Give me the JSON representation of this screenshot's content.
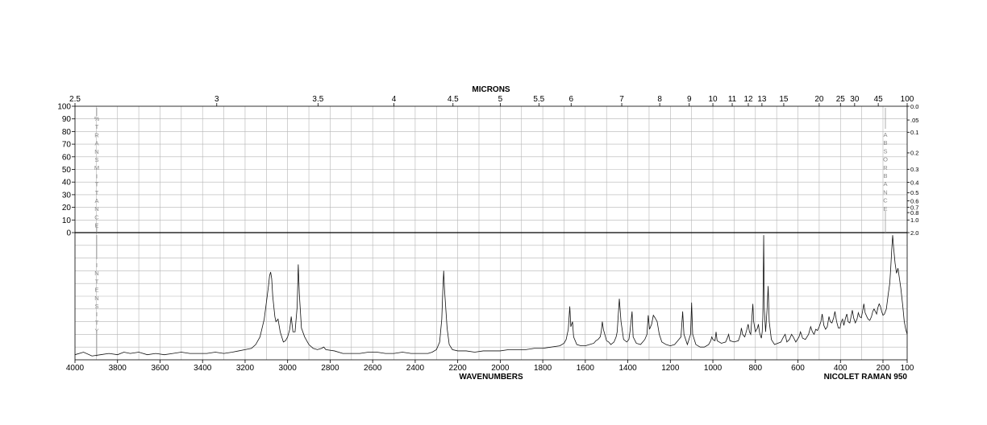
{
  "chart_data": {
    "type": "line",
    "xlabel": "WAVENUMBERS",
    "top_axis_label": "MICRONS",
    "instrument_label": "NICOLET RAMAN 950",
    "left_upper_axis_title": "%TRANSMITTANCE",
    "left_lower_axis_title": "INTENSITY",
    "right_axis_title": "ABSORBANCE",
    "xlim": [
      4000,
      100
    ],
    "x_ticks": [
      4000,
      3800,
      3600,
      3400,
      3200,
      3000,
      2800,
      2600,
      2400,
      2200,
      2000,
      1800,
      1600,
      1400,
      1200,
      1000,
      800,
      600,
      400,
      200,
      100
    ],
    "x_tick_labels": [
      "4000",
      "3800",
      "3600",
      "3400",
      "3200",
      "3000",
      "2800",
      "2600",
      "2400",
      "2200",
      "2000",
      "1800",
      "1600",
      "1400",
      "1200",
      "1000",
      "800",
      "600",
      "400",
      "200",
      "100"
    ],
    "micron_ticks": [
      2.5,
      3,
      3.5,
      4,
      4.5,
      5,
      5.5,
      6,
      7,
      8,
      9,
      10,
      11,
      12,
      13,
      15,
      20,
      25,
      30,
      45,
      100
    ],
    "micron_tick_labels": [
      "2.5",
      "3",
      "3.5",
      "4",
      "4.5",
      "5",
      "5.5",
      "6",
      "7",
      "8",
      "9",
      "10",
      "11",
      "12",
      "13",
      "15",
      "20",
      "25",
      "30",
      "45",
      "100"
    ],
    "transmittance_ticks": [
      100,
      90,
      80,
      70,
      60,
      50,
      40,
      30,
      20,
      10,
      0
    ],
    "transmittance_tick_labels": [
      "100",
      "90",
      "80",
      "70",
      "60",
      "50",
      "40",
      "30",
      "20",
      "10",
      "0"
    ],
    "absorbance_ticks": [
      0.0,
      0.05,
      0.1,
      0.2,
      0.3,
      0.4,
      0.5,
      0.6,
      0.7,
      0.8,
      1.0,
      2.0
    ],
    "absorbance_tick_labels": [
      "0.0",
      ".05",
      "0.1",
      "0.2",
      "0.3",
      "0.4",
      "0.5",
      "0.6",
      "0.7",
      "0.8",
      "1.0",
      "2.0"
    ],
    "grid": true,
    "series": [
      {
        "points": [
          [
            4000,
            0.04
          ],
          [
            3960,
            0.06
          ],
          [
            3920,
            0.03
          ],
          [
            3880,
            0.04
          ],
          [
            3840,
            0.05
          ],
          [
            3800,
            0.04
          ],
          [
            3770,
            0.06
          ],
          [
            3740,
            0.05
          ],
          [
            3700,
            0.06
          ],
          [
            3660,
            0.04
          ],
          [
            3620,
            0.05
          ],
          [
            3580,
            0.04
          ],
          [
            3540,
            0.05
          ],
          [
            3500,
            0.06
          ],
          [
            3460,
            0.05
          ],
          [
            3420,
            0.05
          ],
          [
            3380,
            0.05
          ],
          [
            3340,
            0.06
          ],
          [
            3300,
            0.05
          ],
          [
            3260,
            0.06
          ],
          [
            3230,
            0.07
          ],
          [
            3200,
            0.08
          ],
          [
            3170,
            0.09
          ],
          [
            3150,
            0.12
          ],
          [
            3130,
            0.18
          ],
          [
            3110,
            0.32
          ],
          [
            3100,
            0.45
          ],
          [
            3090,
            0.58
          ],
          [
            3085,
            0.66
          ],
          [
            3080,
            0.69
          ],
          [
            3075,
            0.64
          ],
          [
            3070,
            0.5
          ],
          [
            3060,
            0.34
          ],
          [
            3055,
            0.3
          ],
          [
            3045,
            0.32
          ],
          [
            3035,
            0.22
          ],
          [
            3020,
            0.14
          ],
          [
            3010,
            0.15
          ],
          [
            3000,
            0.18
          ],
          [
            2990,
            0.24
          ],
          [
            2983,
            0.34
          ],
          [
            2975,
            0.22
          ],
          [
            2965,
            0.22
          ],
          [
            2955,
            0.42
          ],
          [
            2950,
            0.75
          ],
          [
            2945,
            0.52
          ],
          [
            2935,
            0.25
          ],
          [
            2920,
            0.18
          ],
          [
            2900,
            0.12
          ],
          [
            2880,
            0.09
          ],
          [
            2860,
            0.08
          ],
          [
            2840,
            0.09
          ],
          [
            2830,
            0.1
          ],
          [
            2820,
            0.08
          ],
          [
            2780,
            0.07
          ],
          [
            2740,
            0.05
          ],
          [
            2700,
            0.05
          ],
          [
            2660,
            0.05
          ],
          [
            2620,
            0.06
          ],
          [
            2580,
            0.06
          ],
          [
            2540,
            0.05
          ],
          [
            2500,
            0.05
          ],
          [
            2460,
            0.06
          ],
          [
            2420,
            0.05
          ],
          [
            2380,
            0.05
          ],
          [
            2340,
            0.05
          ],
          [
            2320,
            0.06
          ],
          [
            2300,
            0.08
          ],
          [
            2285,
            0.14
          ],
          [
            2275,
            0.32
          ],
          [
            2270,
            0.55
          ],
          [
            2266,
            0.7
          ],
          [
            2262,
            0.55
          ],
          [
            2258,
            0.45
          ],
          [
            2250,
            0.25
          ],
          [
            2240,
            0.12
          ],
          [
            2225,
            0.08
          ],
          [
            2200,
            0.07
          ],
          [
            2160,
            0.07
          ],
          [
            2120,
            0.06
          ],
          [
            2080,
            0.07
          ],
          [
            2040,
            0.07
          ],
          [
            2000,
            0.07
          ],
          [
            1960,
            0.08
          ],
          [
            1920,
            0.08
          ],
          [
            1880,
            0.08
          ],
          [
            1840,
            0.09
          ],
          [
            1800,
            0.09
          ],
          [
            1760,
            0.1
          ],
          [
            1720,
            0.11
          ],
          [
            1700,
            0.13
          ],
          [
            1690,
            0.16
          ],
          [
            1680,
            0.24
          ],
          [
            1673,
            0.42
          ],
          [
            1668,
            0.26
          ],
          [
            1660,
            0.3
          ],
          [
            1655,
            0.18
          ],
          [
            1640,
            0.12
          ],
          [
            1620,
            0.11
          ],
          [
            1600,
            0.11
          ],
          [
            1580,
            0.12
          ],
          [
            1560,
            0.13
          ],
          [
            1550,
            0.15
          ],
          [
            1540,
            0.16
          ],
          [
            1530,
            0.18
          ],
          [
            1525,
            0.22
          ],
          [
            1520,
            0.3
          ],
          [
            1515,
            0.24
          ],
          [
            1500,
            0.15
          ],
          [
            1490,
            0.14
          ],
          [
            1480,
            0.12
          ],
          [
            1465,
            0.14
          ],
          [
            1455,
            0.18
          ],
          [
            1450,
            0.22
          ],
          [
            1440,
            0.48
          ],
          [
            1432,
            0.3
          ],
          [
            1420,
            0.16
          ],
          [
            1405,
            0.14
          ],
          [
            1395,
            0.16
          ],
          [
            1390,
            0.22
          ],
          [
            1380,
            0.38
          ],
          [
            1375,
            0.18
          ],
          [
            1360,
            0.13
          ],
          [
            1340,
            0.12
          ],
          [
            1320,
            0.16
          ],
          [
            1310,
            0.2
          ],
          [
            1304,
            0.35
          ],
          [
            1298,
            0.24
          ],
          [
            1288,
            0.28
          ],
          [
            1280,
            0.35
          ],
          [
            1272,
            0.33
          ],
          [
            1262,
            0.3
          ],
          [
            1252,
            0.2
          ],
          [
            1240,
            0.14
          ],
          [
            1220,
            0.12
          ],
          [
            1200,
            0.11
          ],
          [
            1180,
            0.12
          ],
          [
            1160,
            0.16
          ],
          [
            1150,
            0.18
          ],
          [
            1142,
            0.38
          ],
          [
            1136,
            0.2
          ],
          [
            1120,
            0.12
          ],
          [
            1105,
            0.2
          ],
          [
            1100,
            0.45
          ],
          [
            1095,
            0.2
          ],
          [
            1080,
            0.12
          ],
          [
            1060,
            0.1
          ],
          [
            1040,
            0.1
          ],
          [
            1020,
            0.12
          ],
          [
            1010,
            0.15
          ],
          [
            1005,
            0.18
          ],
          [
            1000,
            0.16
          ],
          [
            990,
            0.15
          ],
          [
            985,
            0.22
          ],
          [
            980,
            0.15
          ],
          [
            960,
            0.13
          ],
          [
            940,
            0.14
          ],
          [
            930,
            0.18
          ],
          [
            926,
            0.2
          ],
          [
            920,
            0.15
          ],
          [
            900,
            0.14
          ],
          [
            880,
            0.15
          ],
          [
            870,
            0.2
          ],
          [
            866,
            0.25
          ],
          [
            860,
            0.2
          ],
          [
            850,
            0.18
          ],
          [
            840,
            0.24
          ],
          [
            834,
            0.28
          ],
          [
            828,
            0.22
          ],
          [
            822,
            0.2
          ],
          [
            816,
            0.34
          ],
          [
            812,
            0.44
          ],
          [
            808,
            0.3
          ],
          [
            800,
            0.22
          ],
          [
            790,
            0.25
          ],
          [
            786,
            0.28
          ],
          [
            780,
            0.21
          ],
          [
            772,
            0.17
          ],
          [
            768,
            0.22
          ],
          [
            765,
            0.34
          ],
          [
            761,
            0.98
          ],
          [
            758,
            0.4
          ],
          [
            752,
            0.22
          ],
          [
            745,
            0.4
          ],
          [
            740,
            0.58
          ],
          [
            735,
            0.3
          ],
          [
            725,
            0.16
          ],
          [
            710,
            0.12
          ],
          [
            695,
            0.13
          ],
          [
            680,
            0.14
          ],
          [
            668,
            0.18
          ],
          [
            660,
            0.2
          ],
          [
            652,
            0.14
          ],
          [
            640,
            0.16
          ],
          [
            630,
            0.2
          ],
          [
            622,
            0.18
          ],
          [
            610,
            0.14
          ],
          [
            595,
            0.18
          ],
          [
            588,
            0.22
          ],
          [
            578,
            0.17
          ],
          [
            565,
            0.16
          ],
          [
            550,
            0.2
          ],
          [
            540,
            0.26
          ],
          [
            532,
            0.22
          ],
          [
            524,
            0.2
          ],
          [
            516,
            0.24
          ],
          [
            508,
            0.23
          ],
          [
            500,
            0.26
          ],
          [
            492,
            0.3
          ],
          [
            486,
            0.36
          ],
          [
            478,
            0.27
          ],
          [
            470,
            0.24
          ],
          [
            462,
            0.26
          ],
          [
            454,
            0.34
          ],
          [
            448,
            0.3
          ],
          [
            440,
            0.29
          ],
          [
            432,
            0.33
          ],
          [
            426,
            0.38
          ],
          [
            418,
            0.3
          ],
          [
            410,
            0.25
          ],
          [
            402,
            0.25
          ],
          [
            396,
            0.3
          ],
          [
            390,
            0.32
          ],
          [
            384,
            0.27
          ],
          [
            376,
            0.33
          ],
          [
            370,
            0.36
          ],
          [
            364,
            0.3
          ],
          [
            356,
            0.29
          ],
          [
            350,
            0.34
          ],
          [
            344,
            0.39
          ],
          [
            338,
            0.33
          ],
          [
            330,
            0.29
          ],
          [
            322,
            0.32
          ],
          [
            316,
            0.37
          ],
          [
            310,
            0.34
          ],
          [
            302,
            0.33
          ],
          [
            296,
            0.38
          ],
          [
            290,
            0.44
          ],
          [
            284,
            0.37
          ],
          [
            276,
            0.34
          ],
          [
            270,
            0.32
          ],
          [
            262,
            0.31
          ],
          [
            254,
            0.34
          ],
          [
            248,
            0.38
          ],
          [
            242,
            0.4
          ],
          [
            236,
            0.38
          ],
          [
            230,
            0.36
          ],
          [
            224,
            0.41
          ],
          [
            218,
            0.44
          ],
          [
            212,
            0.42
          ],
          [
            206,
            0.38
          ],
          [
            200,
            0.35
          ],
          [
            194,
            0.36
          ],
          [
            186,
            0.4
          ],
          [
            178,
            0.52
          ],
          [
            172,
            0.6
          ],
          [
            168,
            0.72
          ],
          [
            164,
            0.86
          ],
          [
            160,
            0.98
          ],
          [
            156,
            0.88
          ],
          [
            150,
            0.76
          ],
          [
            144,
            0.68
          ],
          [
            138,
            0.72
          ],
          [
            132,
            0.64
          ],
          [
            126,
            0.56
          ],
          [
            118,
            0.42
          ],
          [
            112,
            0.3
          ],
          [
            106,
            0.24
          ],
          [
            100,
            0.2
          ]
        ]
      }
    ]
  }
}
